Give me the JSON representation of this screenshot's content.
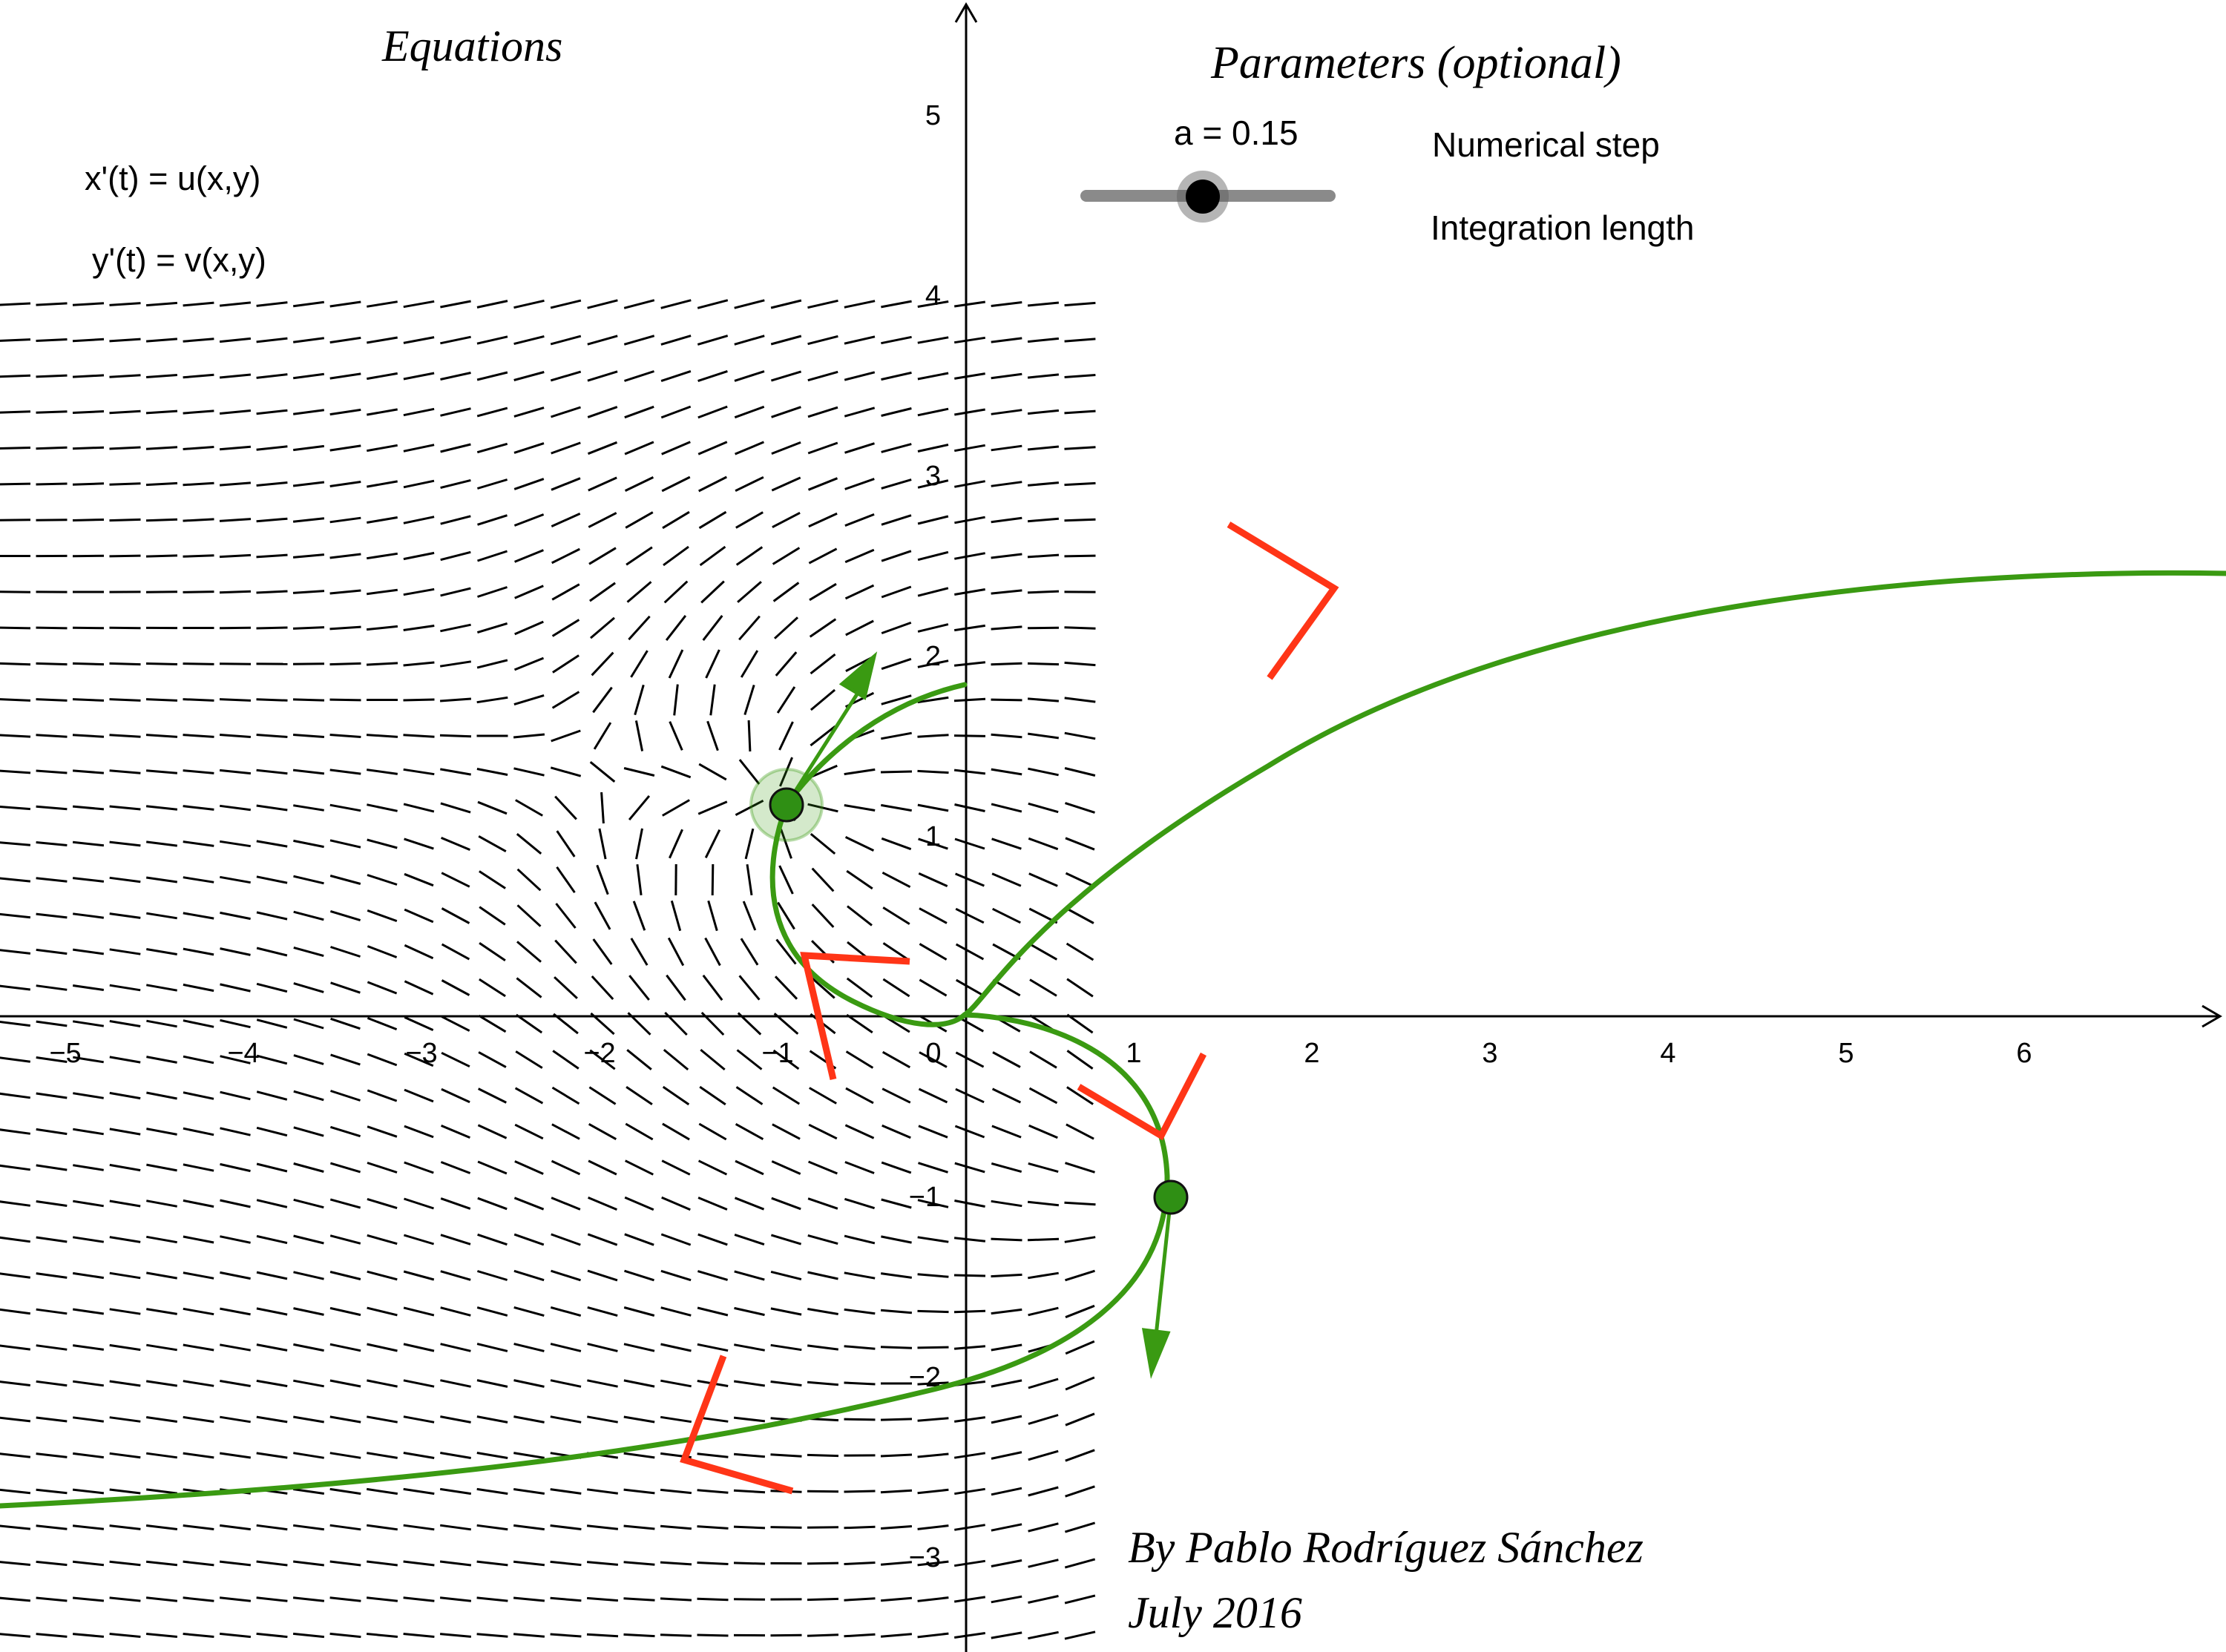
{
  "headings": {
    "equations": "Equations",
    "parameters": "Parameters (optional)"
  },
  "equations": {
    "x_eq": "x'(t) = u(x,y)",
    "y_eq": "y'(t) = v(x,y)"
  },
  "parameters": {
    "slider_label": "a = 0.15",
    "slider_value": 0.15,
    "numerical_step": "Numerical step",
    "integration_length": "Integration length"
  },
  "credits": {
    "author": "By Pablo Rodríguez Sánchez",
    "date": "July 2016"
  },
  "axes": {
    "x_ticks": [
      "−5",
      "−4",
      "−3",
      "−2",
      "−1",
      "0",
      "1",
      "2",
      "3",
      "4",
      "5",
      "6"
    ],
    "y_ticks": [
      "5",
      "4",
      "3",
      "2",
      "1",
      "−1",
      "−2",
      "−3"
    ],
    "x_range": [
      -5.3,
      7.0
    ],
    "y_range": [
      -3.5,
      5.6
    ]
  },
  "points": {
    "point_A": {
      "x": -1.0,
      "y": 1.2
    },
    "point_B": {
      "x": 1.15,
      "y": -1.0
    }
  },
  "colors": {
    "trajectory": "#3a9a12",
    "arrow_heads": "#ff3517",
    "direction_field": "#000000",
    "axes": "#000000",
    "slider_track": "#8a8a8a"
  }
}
